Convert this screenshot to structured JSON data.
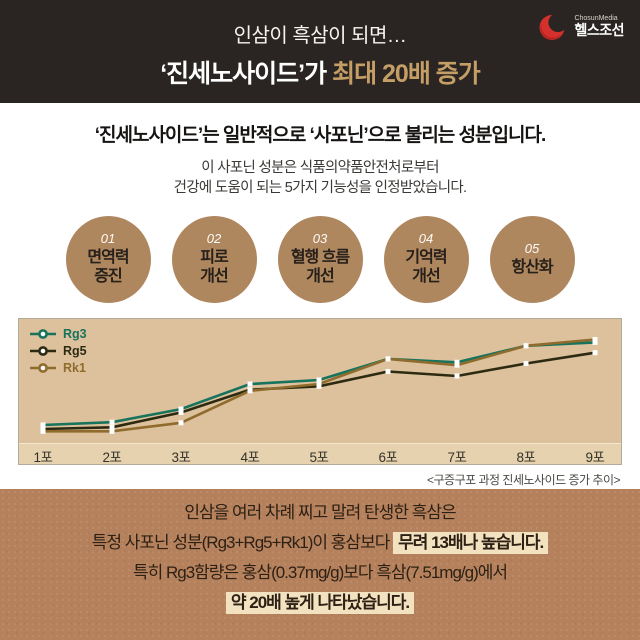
{
  "header": {
    "line1": "인삼이 흑삼이 되면…",
    "line2_white": "‘진세노사이드’가 ",
    "line2_gold": "최대 20배 증가",
    "logo": {
      "brand_small": "ChosunMedia",
      "brand_main": "헬스조선",
      "icon": "chosun-crescent-icon",
      "icon_color": "#d6302c"
    }
  },
  "intro": {
    "title": "‘진세노사이드’는 일반적으로 ‘사포닌’으로 불리는 성분입니다.",
    "subtitle_line1": "이 사포닌 성분은 식품의약품안전처로부터",
    "subtitle_line2": "건강에 도움이 되는 5가지 기능성을 인정받았습니다."
  },
  "benefits": [
    {
      "number": "01",
      "label_line1": "면역력",
      "label_line2": "증진"
    },
    {
      "number": "02",
      "label_line1": "피로",
      "label_line2": "개선"
    },
    {
      "number": "03",
      "label_line1": "혈행 흐름",
      "label_line2": "개선"
    },
    {
      "number": "04",
      "label_line1": "기억력",
      "label_line2": "개선"
    },
    {
      "number": "05",
      "label_line1": "항산화",
      "label_line2": ""
    }
  ],
  "chart_data": {
    "type": "line",
    "title": "",
    "xlabel": "",
    "ylabel": "",
    "categories": [
      "1포",
      "2포",
      "3포",
      "4포",
      "5포",
      "6포",
      "7포",
      "8포",
      "9포"
    ],
    "series": [
      {
        "name": "Rg3",
        "color": "#17735c",
        "values": [
          14,
          16.5,
          28,
          50,
          53.5,
          72,
          69,
          83.5,
          86.5
        ]
      },
      {
        "name": "Rg5",
        "color": "#2d2a12",
        "values": [
          10.5,
          12,
          25,
          45,
          48,
          61,
          57,
          68,
          77.5
        ]
      },
      {
        "name": "Rk1",
        "color": "#8f6c2e",
        "values": [
          8.5,
          8.5,
          16,
          44,
          50,
          72,
          66.5,
          83.5,
          89
        ]
      }
    ],
    "ylim": [
      0,
      100
    ],
    "y_axis_shown": false,
    "grid": false,
    "legend_position": "top-left",
    "marker": "white-square",
    "plot_bg": "#ddc19c",
    "axis_strip_bg": "#e6d2ae",
    "caption": "<구증구포 과정 진세노사이드 증가 추이>"
  },
  "footer": {
    "line1": "인삼을 여러 차례 찌고 말려 탄생한 흑삼은",
    "line2_normal": "특정 사포닌 성분(Rg3+Rg5+Rk1)이 홍삼보다 ",
    "line2_highlight": "무려 13배나 높습니다.",
    "line3": "특히 Rg3함량은 홍삼(0.37mg/g)보다 흑삼(7.51mg/g)에서",
    "line4_highlight": "약 20배 높게 나타났습니다."
  }
}
